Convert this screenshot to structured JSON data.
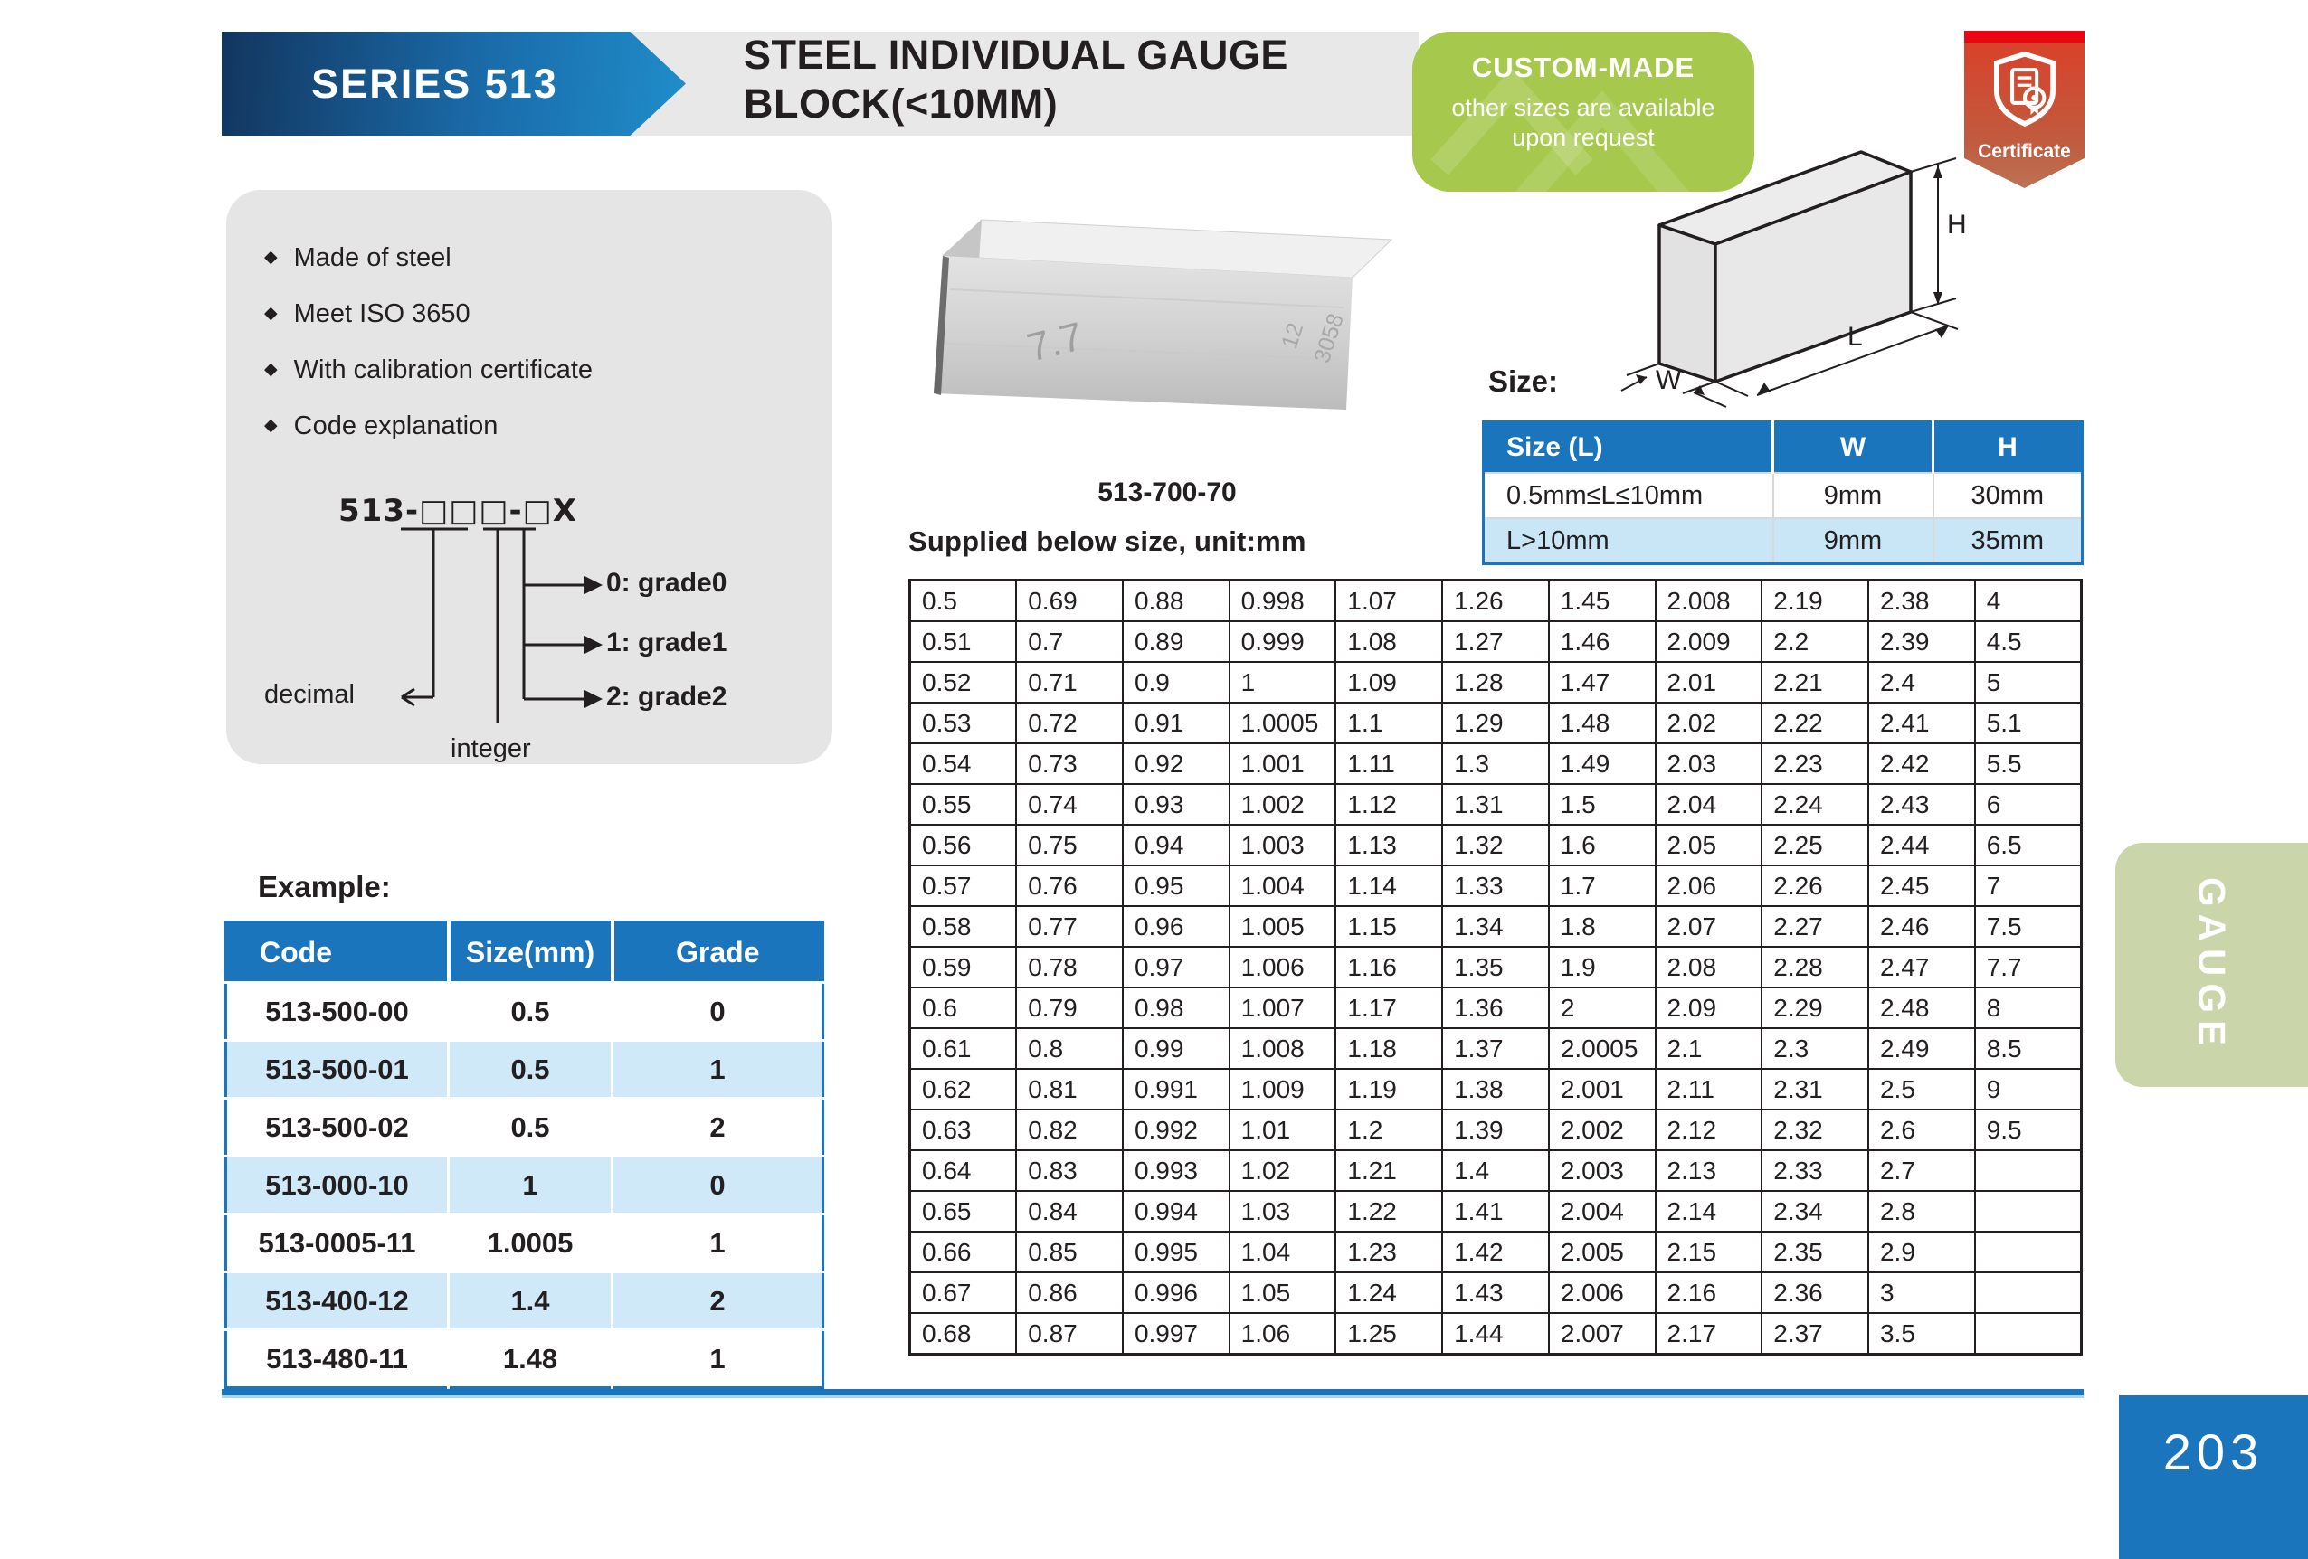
{
  "header": {
    "series": "SERIES 513",
    "title_line1": "STEEL INDIVIDUAL GAUGE",
    "title_line2": "BLOCK(<10MM)"
  },
  "custom_badge": {
    "title": "CUSTOM-MADE",
    "line1": "other sizes are available",
    "line2": "upon request"
  },
  "certificate_badge": {
    "label": "Certificate"
  },
  "features": {
    "bullets": [
      "Made of steel",
      "Meet ISO 3650",
      "With calibration certificate",
      "Code explanation"
    ],
    "code_diagram": {
      "code": "513-□□□-□X",
      "decimal_label": "decimal",
      "integer_label": "integer",
      "grade_options": [
        "0: grade0",
        "1: grade1",
        "2: grade2"
      ]
    }
  },
  "product": {
    "caption": "513-700-70",
    "engraving_front": "7.7",
    "engraving_side_top": "12",
    "engraving_side_bottom": "3058"
  },
  "size_section": {
    "label": "Size:",
    "dim_h": "H",
    "dim_l": "L",
    "dim_w": "W",
    "table": {
      "headers": [
        "Size (L)",
        "W",
        "H"
      ],
      "rows": [
        [
          "0.5mm≤L≤10mm",
          "9mm",
          "30mm"
        ],
        [
          "L>10mm",
          "9mm",
          "35mm"
        ]
      ]
    }
  },
  "supplied": {
    "heading": "Supplied below size, unit:mm",
    "columns": [
      [
        "0.5",
        "0.51",
        "0.52",
        "0.53",
        "0.54",
        "0.55",
        "0.56",
        "0.57",
        "0.58",
        "0.59",
        "0.6",
        "0.61",
        "0.62",
        "0.63",
        "0.64",
        "0.65",
        "0.66",
        "0.67",
        "0.68"
      ],
      [
        "0.69",
        "0.7",
        "0.71",
        "0.72",
        "0.73",
        "0.74",
        "0.75",
        "0.76",
        "0.77",
        "0.78",
        "0.79",
        "0.8",
        "0.81",
        "0.82",
        "0.83",
        "0.84",
        "0.85",
        "0.86",
        "0.87"
      ],
      [
        "0.88",
        "0.89",
        "0.9",
        "0.91",
        "0.92",
        "0.93",
        "0.94",
        "0.95",
        "0.96",
        "0.97",
        "0.98",
        "0.99",
        "0.991",
        "0.992",
        "0.993",
        "0.994",
        "0.995",
        "0.996",
        "0.997"
      ],
      [
        "0.998",
        "0.999",
        "1",
        "1.0005",
        "1.001",
        "1.002",
        "1.003",
        "1.004",
        "1.005",
        "1.006",
        "1.007",
        "1.008",
        "1.009",
        "1.01",
        "1.02",
        "1.03",
        "1.04",
        "1.05",
        "1.06"
      ],
      [
        "1.07",
        "1.08",
        "1.09",
        "1.1",
        "1.11",
        "1.12",
        "1.13",
        "1.14",
        "1.15",
        "1.16",
        "1.17",
        "1.18",
        "1.19",
        "1.2",
        "1.21",
        "1.22",
        "1.23",
        "1.24",
        "1.25"
      ],
      [
        "1.26",
        "1.27",
        "1.28",
        "1.29",
        "1.3",
        "1.31",
        "1.32",
        "1.33",
        "1.34",
        "1.35",
        "1.36",
        "1.37",
        "1.38",
        "1.39",
        "1.4",
        "1.41",
        "1.42",
        "1.43",
        "1.44"
      ],
      [
        "1.45",
        "1.46",
        "1.47",
        "1.48",
        "1.49",
        "1.5",
        "1.6",
        "1.7",
        "1.8",
        "1.9",
        "2",
        "2.0005",
        "2.001",
        "2.002",
        "2.003",
        "2.004",
        "2.005",
        "2.006",
        "2.007"
      ],
      [
        "2.008",
        "2.009",
        "2.01",
        "2.02",
        "2.03",
        "2.04",
        "2.05",
        "2.06",
        "2.07",
        "2.08",
        "2.09",
        "2.1",
        "2.11",
        "2.12",
        "2.13",
        "2.14",
        "2.15",
        "2.16",
        "2.17"
      ],
      [
        "2.19",
        "2.2",
        "2.21",
        "2.22",
        "2.23",
        "2.24",
        "2.25",
        "2.26",
        "2.27",
        "2.28",
        "2.29",
        "2.3",
        "2.31",
        "2.32",
        "2.33",
        "2.34",
        "2.35",
        "2.36",
        "2.37"
      ],
      [
        "2.38",
        "2.39",
        "2.4",
        "2.41",
        "2.42",
        "2.43",
        "2.44",
        "2.45",
        "2.46",
        "2.47",
        "2.48",
        "2.49",
        "2.5",
        "2.6",
        "2.7",
        "2.8",
        "2.9",
        "3",
        "3.5"
      ],
      [
        "4",
        "4.5",
        "5",
        "5.1",
        "5.5",
        "6",
        "6.5",
        "7",
        "7.5",
        "7.7",
        "8",
        "8.5",
        "9",
        "9.5",
        "",
        "",
        "",
        "",
        ""
      ]
    ]
  },
  "example": {
    "heading": "Example:",
    "headers": [
      "Code",
      "Size(mm)",
      "Grade"
    ],
    "rows": [
      [
        "513-500-00",
        "0.5",
        "0"
      ],
      [
        "513-500-01",
        "0.5",
        "1"
      ],
      [
        "513-500-02",
        "0.5",
        "2"
      ],
      [
        "513-000-10",
        "1",
        "0"
      ],
      [
        "513-0005-11",
        "1.0005",
        "1"
      ],
      [
        "513-400-12",
        "1.4",
        "2"
      ],
      [
        "513-480-11",
        "1.48",
        "1"
      ]
    ]
  },
  "side": {
    "tab_label": "GAUGE",
    "page_number": "203"
  },
  "colors": {
    "accent_blue": "#1a75bc",
    "light_blue_row": "#cfe9f8",
    "badge_green": "#a6c94d",
    "tab_sage": "#cbd5aa",
    "certificate_red": "#db3e28",
    "banner_dark": "#12365e",
    "banner_light": "#1f8dca"
  }
}
